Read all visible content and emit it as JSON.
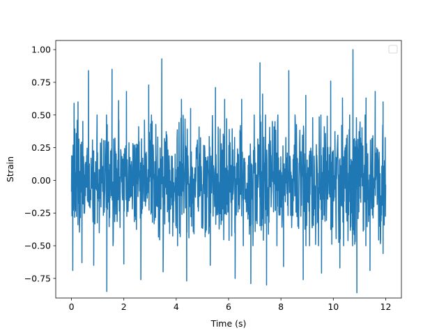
{
  "chart_data": {
    "type": "line",
    "title": "",
    "xlabel": "Time (s)",
    "ylabel": "Strain",
    "xlim": [
      -0.6,
      12.6
    ],
    "ylim": [
      -0.9,
      1.07
    ],
    "grid": false,
    "legend": "top-right",
    "x_ticks": [
      {
        "value": 0,
        "label": "0"
      },
      {
        "value": 2,
        "label": "2"
      },
      {
        "value": 4,
        "label": "4"
      },
      {
        "value": 6,
        "label": "6"
      },
      {
        "value": 8,
        "label": "8"
      },
      {
        "value": 10,
        "label": "10"
      },
      {
        "value": 12,
        "label": "12"
      }
    ],
    "y_ticks": [
      {
        "value": -0.75,
        "label": "−0.75"
      },
      {
        "value": -0.5,
        "label": "−0.50"
      },
      {
        "value": -0.25,
        "label": "−0.25"
      },
      {
        "value": 0,
        "label": "0.00"
      },
      {
        "value": 0.25,
        "label": "0.25"
      },
      {
        "value": 0.5,
        "label": "0.50"
      },
      {
        "value": 0.75,
        "label": "0.75"
      },
      {
        "value": 1.0,
        "label": "1.00"
      }
    ],
    "series": [
      {
        "color": "#1f77b4",
        "x_start": 0,
        "x_end": 12,
        "typical_range": [
          -0.5,
          0.5
        ],
        "peaks": [
          {
            "x": 0.1,
            "y": 0.59
          },
          {
            "x": 0.25,
            "y": 0.6
          },
          {
            "x": 0.65,
            "y": 0.84
          },
          {
            "x": 1.55,
            "y": 0.85
          },
          {
            "x": 1.8,
            "y": 0.61
          },
          {
            "x": 2.1,
            "y": 0.68
          },
          {
            "x": 2.95,
            "y": 0.73
          },
          {
            "x": 3.45,
            "y": 0.93
          },
          {
            "x": 4.2,
            "y": 0.62
          },
          {
            "x": 4.55,
            "y": 0.55
          },
          {
            "x": 5.5,
            "y": 0.71
          },
          {
            "x": 5.85,
            "y": 0.62
          },
          {
            "x": 6.5,
            "y": 0.62
          },
          {
            "x": 7.2,
            "y": 0.9
          },
          {
            "x": 7.3,
            "y": 0.66
          },
          {
            "x": 8.3,
            "y": 0.84
          },
          {
            "x": 8.95,
            "y": 0.65
          },
          {
            "x": 9.9,
            "y": 0.76
          },
          {
            "x": 10.35,
            "y": 0.63
          },
          {
            "x": 10.75,
            "y": 1.0
          },
          {
            "x": 11.25,
            "y": 0.63
          },
          {
            "x": 11.6,
            "y": 0.68
          },
          {
            "x": 11.9,
            "y": 0.6
          }
        ],
        "troughs": [
          {
            "x": 0.05,
            "y": -0.69
          },
          {
            "x": 0.4,
            "y": -0.63
          },
          {
            "x": 0.85,
            "y": -0.65
          },
          {
            "x": 1.35,
            "y": -0.85
          },
          {
            "x": 2.0,
            "y": -0.64
          },
          {
            "x": 2.65,
            "y": -0.76
          },
          {
            "x": 3.5,
            "y": -0.7
          },
          {
            "x": 4.4,
            "y": -0.77
          },
          {
            "x": 5.3,
            "y": -0.65
          },
          {
            "x": 6.25,
            "y": -0.75
          },
          {
            "x": 6.85,
            "y": -0.79
          },
          {
            "x": 7.45,
            "y": -0.8
          },
          {
            "x": 8.1,
            "y": -0.66
          },
          {
            "x": 8.85,
            "y": -0.76
          },
          {
            "x": 9.55,
            "y": -0.71
          },
          {
            "x": 10.25,
            "y": -0.67
          },
          {
            "x": 10.9,
            "y": -0.86
          },
          {
            "x": 11.4,
            "y": -0.69
          },
          {
            "x": 11.9,
            "y": -0.56
          }
        ]
      }
    ]
  }
}
